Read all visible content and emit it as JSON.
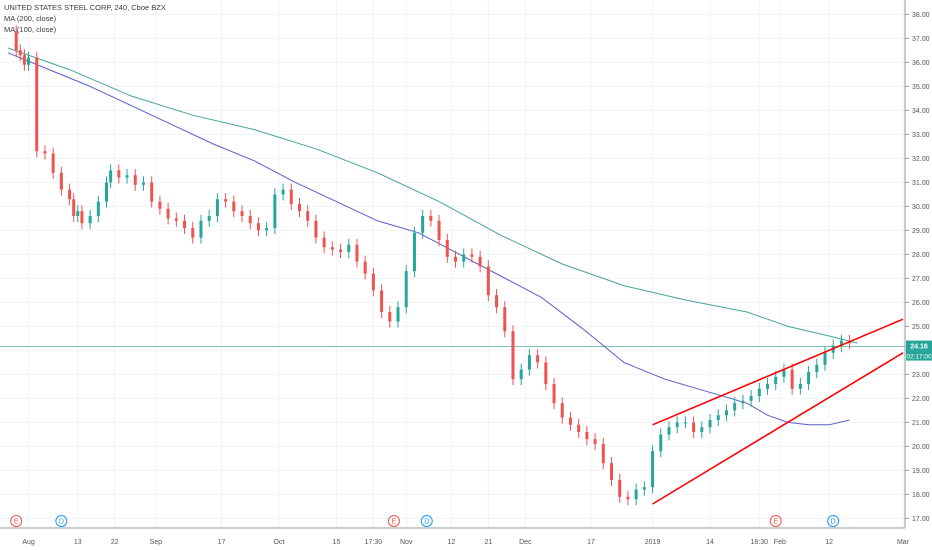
{
  "header": {
    "title": "UNITED STATES STEEL CORP, 240, Cboe BZX",
    "ma200_label": "MA (200, close)",
    "ma100_label": "MA (100, close)"
  },
  "price_label": {
    "value": "24.16",
    "countdown": "02:17:00",
    "color": "#26a69a"
  },
  "colors": {
    "up": "#26a69a",
    "down": "#ef5350",
    "ma200": "#48a399",
    "ma100": "#5b5ec6",
    "channel": "#ff0000",
    "grid": "#f0f3fa",
    "hline": "#4da3a0"
  },
  "event_markers": [
    {
      "letter": "E",
      "date_index": 0,
      "color": "#ef5350"
    },
    {
      "letter": "D",
      "date_index": 1,
      "color": "#2196f3"
    },
    {
      "letter": "E",
      "date_index": 2,
      "color": "#ef5350"
    },
    {
      "letter": "D",
      "date_index": 3,
      "color": "#2196f3"
    },
    {
      "letter": "E",
      "date_index": 4,
      "color": "#ef5350"
    },
    {
      "letter": "D",
      "date_index": 5,
      "color": "#2196f3"
    }
  ],
  "chart_data": {
    "type": "line",
    "title": "UNITED STATES STEEL CORP, 240, Cboe BZX",
    "xlabel": "",
    "ylabel": "",
    "x_tick_labels": [
      "Aug",
      "13",
      "22",
      "Sep",
      "17",
      "Oct",
      "15",
      "17:30",
      "Nov",
      "12",
      "21",
      "Dec",
      "17",
      "2019",
      "14",
      "18:30",
      "Feb",
      "12",
      "Mar"
    ],
    "y_tick_labels": [
      "17.00",
      "18.00",
      "19.00",
      "20.00",
      "21.00",
      "22.00",
      "23.00",
      "24.00",
      "25.00",
      "26.00",
      "27.00",
      "28.00",
      "29.00",
      "30.00",
      "31.00",
      "32.00",
      "33.00",
      "34.00",
      "35.00",
      "36.00",
      "37.00",
      "38.00"
    ],
    "ylim": [
      16.6,
      38.6
    ],
    "x_days": [
      0,
      12,
      21,
      31,
      47,
      61,
      75,
      84,
      92,
      103,
      112,
      121,
      137,
      152,
      166,
      178,
      183,
      195,
      213
    ],
    "events_x_days": [
      -3,
      8,
      89,
      97,
      182,
      196
    ],
    "last_price": 24.16,
    "grid": true,
    "series": [
      {
        "name": "MA (200, close)",
        "x": [
          -5,
          10,
          25,
          40,
          55,
          70,
          85,
          100,
          115,
          130,
          145,
          160,
          175,
          185,
          195,
          202
        ],
        "y": [
          36.6,
          35.7,
          34.6,
          33.8,
          33.2,
          32.4,
          31.4,
          30.2,
          28.8,
          27.6,
          26.7,
          26.1,
          25.6,
          25.0,
          24.6,
          24.3
        ]
      },
      {
        "name": "MA (100, close)",
        "x": [
          -5,
          5,
          15,
          25,
          35,
          45,
          55,
          65,
          75,
          85,
          95,
          105,
          115,
          125,
          135,
          145,
          155,
          165,
          175,
          180,
          185,
          190,
          195,
          200
        ],
        "y": [
          36.4,
          35.7,
          35.0,
          34.2,
          33.4,
          32.6,
          31.9,
          31.0,
          30.2,
          29.4,
          28.9,
          28.0,
          27.1,
          26.2,
          24.9,
          23.5,
          22.8,
          22.3,
          21.8,
          21.3,
          21.0,
          20.9,
          20.9,
          21.1
        ]
      },
      {
        "name": "price",
        "x": [
          -5,
          -3,
          -2,
          -1,
          0,
          2,
          4,
          6,
          8,
          10,
          11,
          12,
          13,
          15,
          17,
          19,
          20,
          22,
          24,
          26,
          28,
          30,
          32,
          34,
          36,
          38,
          40,
          42,
          44,
          46,
          48,
          50,
          52,
          54,
          56,
          58,
          60,
          62,
          64,
          66,
          68,
          70,
          72,
          74,
          76,
          78,
          80,
          82,
          84,
          86,
          88,
          90,
          92,
          94,
          96,
          98,
          100,
          102,
          104,
          106,
          108,
          110,
          112,
          114,
          116,
          118,
          120,
          122,
          124,
          126,
          128,
          130,
          132,
          134,
          136,
          138,
          140,
          142,
          144,
          146,
          148,
          150,
          152,
          154,
          156,
          158,
          160,
          162,
          164,
          166,
          168,
          170,
          172,
          174,
          176,
          178,
          180,
          182,
          184,
          186,
          188,
          190,
          192,
          194,
          196,
          198,
          200
        ],
        "y": [
          37.3,
          36.5,
          36.3,
          35.9,
          36.2,
          32.3,
          32.2,
          31.4,
          30.7,
          30.3,
          29.6,
          29.8,
          29.3,
          29.6,
          30.2,
          31.0,
          31.5,
          31.2,
          31.3,
          30.9,
          31.0,
          30.2,
          29.9,
          29.5,
          29.4,
          29.1,
          28.7,
          29.4,
          29.6,
          30.3,
          30.2,
          29.8,
          29.6,
          29.3,
          29.0,
          29.1,
          30.5,
          30.7,
          30.1,
          29.8,
          29.4,
          28.7,
          28.3,
          28.2,
          28.1,
          28.4,
          27.7,
          27.2,
          26.5,
          25.6,
          25.2,
          25.8,
          27.3,
          28.9,
          29.6,
          29.4,
          28.6,
          27.9,
          27.7,
          28.0,
          27.9,
          27.5,
          26.3,
          25.8,
          24.8,
          22.8,
          23.2,
          23.8,
          23.5,
          22.6,
          21.8,
          21.2,
          20.9,
          20.6,
          20.3,
          20.1,
          19.3,
          18.6,
          17.9,
          17.8,
          18.2,
          18.3,
          19.8,
          20.5,
          20.8,
          21.0,
          21.0,
          20.6,
          20.8,
          21.1,
          21.3,
          21.5,
          21.8,
          21.9,
          22.1,
          22.4,
          22.6,
          22.9,
          23.2,
          22.4,
          22.6,
          23.1,
          23.4,
          23.9,
          24.2,
          24.4,
          24.3
        ]
      }
    ],
    "trendlines": [
      {
        "name": "channel-top",
        "x": [
          152,
          213
        ],
        "y": [
          20.9,
          25.3
        ]
      },
      {
        "name": "channel-bottom",
        "x": [
          152,
          213
        ],
        "y": [
          17.6,
          23.9
        ]
      }
    ]
  }
}
